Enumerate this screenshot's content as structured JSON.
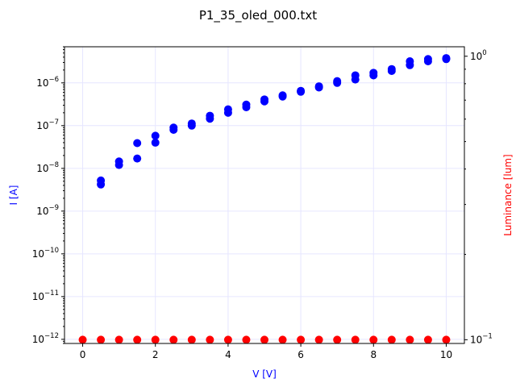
{
  "chart_data": {
    "type": "scatter",
    "title": "P1_35_oled_000.txt",
    "xlabel": "V [V]",
    "ylabel_left": "I [A]",
    "ylabel_right": "Luminance [lum]",
    "xlim": [
      -0.5,
      10.5
    ],
    "ylim_left": [
      8e-13,
      7e-06
    ],
    "ylim_right": [
      0.097,
      1.08
    ],
    "yscale_left": "log",
    "yscale_right": "log",
    "grid": true,
    "x_ticks": [
      0,
      2,
      4,
      6,
      8,
      10
    ],
    "x_tick_labels": [
      "0",
      "2",
      "4",
      "6",
      "8",
      "10"
    ],
    "left_ticks": [
      {
        "value": 1e-12,
        "base": "10",
        "exp": "−12"
      },
      {
        "value": 1e-11,
        "base": "10",
        "exp": "−11"
      },
      {
        "value": 1e-10,
        "base": "10",
        "exp": "−10"
      },
      {
        "value": 1e-09,
        "base": "10",
        "exp": "−9"
      },
      {
        "value": 1e-08,
        "base": "10",
        "exp": "−8"
      },
      {
        "value": 1e-07,
        "base": "10",
        "exp": "−7"
      },
      {
        "value": 1e-06,
        "base": "10",
        "exp": "−6"
      }
    ],
    "right_ticks": [
      {
        "value": 0.1,
        "base": "10",
        "exp": "−1"
      },
      {
        "value": 1,
        "base": "10",
        "exp": "0"
      }
    ],
    "colors": {
      "current": "#0000ff",
      "luminance": "#ff0000",
      "grid": "#e6e6ff"
    },
    "series": [
      {
        "axis": "left",
        "color": "#0000ff",
        "x": [
          0.5,
          0.5,
          1,
          1,
          1.5,
          1.5,
          2,
          2,
          2.5,
          2.5,
          3,
          3,
          3.5,
          3.5,
          4,
          4,
          4.5,
          4.5,
          5,
          5,
          5.5,
          5.5,
          6,
          6,
          6.5,
          6.5,
          7,
          7,
          7.5,
          7.5,
          8,
          8,
          8.5,
          8.5,
          9,
          9,
          9.5,
          9.5,
          10,
          10
        ],
        "y": [
          4.2e-09,
          5.2e-09,
          1.2e-08,
          1.45e-08,
          1.7e-08,
          3.9e-08,
          4e-08,
          5.8e-08,
          8e-08,
          9e-08,
          1e-07,
          1.12e-07,
          1.45e-07,
          1.7e-07,
          2e-07,
          2.4e-07,
          2.7e-07,
          3.1e-07,
          3.7e-07,
          4.1e-07,
          4.8e-07,
          5.1e-07,
          6.2e-07,
          6.5e-07,
          7.8e-07,
          8.3e-07,
          1e-06,
          1.1e-06,
          1.2e-06,
          1.5e-06,
          1.5e-06,
          1.72e-06,
          1.9e-06,
          2.1e-06,
          2.6e-06,
          3.2e-06,
          3.2e-06,
          3.6e-06,
          3.6e-06,
          3.8e-06
        ]
      },
      {
        "axis": "right",
        "color": "#ff0000",
        "x": [
          0,
          0.5,
          1,
          1.5,
          2,
          2.5,
          3,
          3.5,
          4,
          4.5,
          5,
          5.5,
          6,
          6.5,
          7,
          7.5,
          8,
          8.5,
          9,
          9.5,
          10
        ],
        "y": [
          0.1,
          0.1,
          0.1,
          0.1,
          0.1,
          0.1,
          0.1,
          0.1,
          0.1,
          0.1,
          0.1,
          0.1,
          0.1,
          0.1,
          0.1,
          0.1,
          0.1,
          0.1,
          0.1,
          0.1,
          0.1
        ]
      }
    ]
  }
}
